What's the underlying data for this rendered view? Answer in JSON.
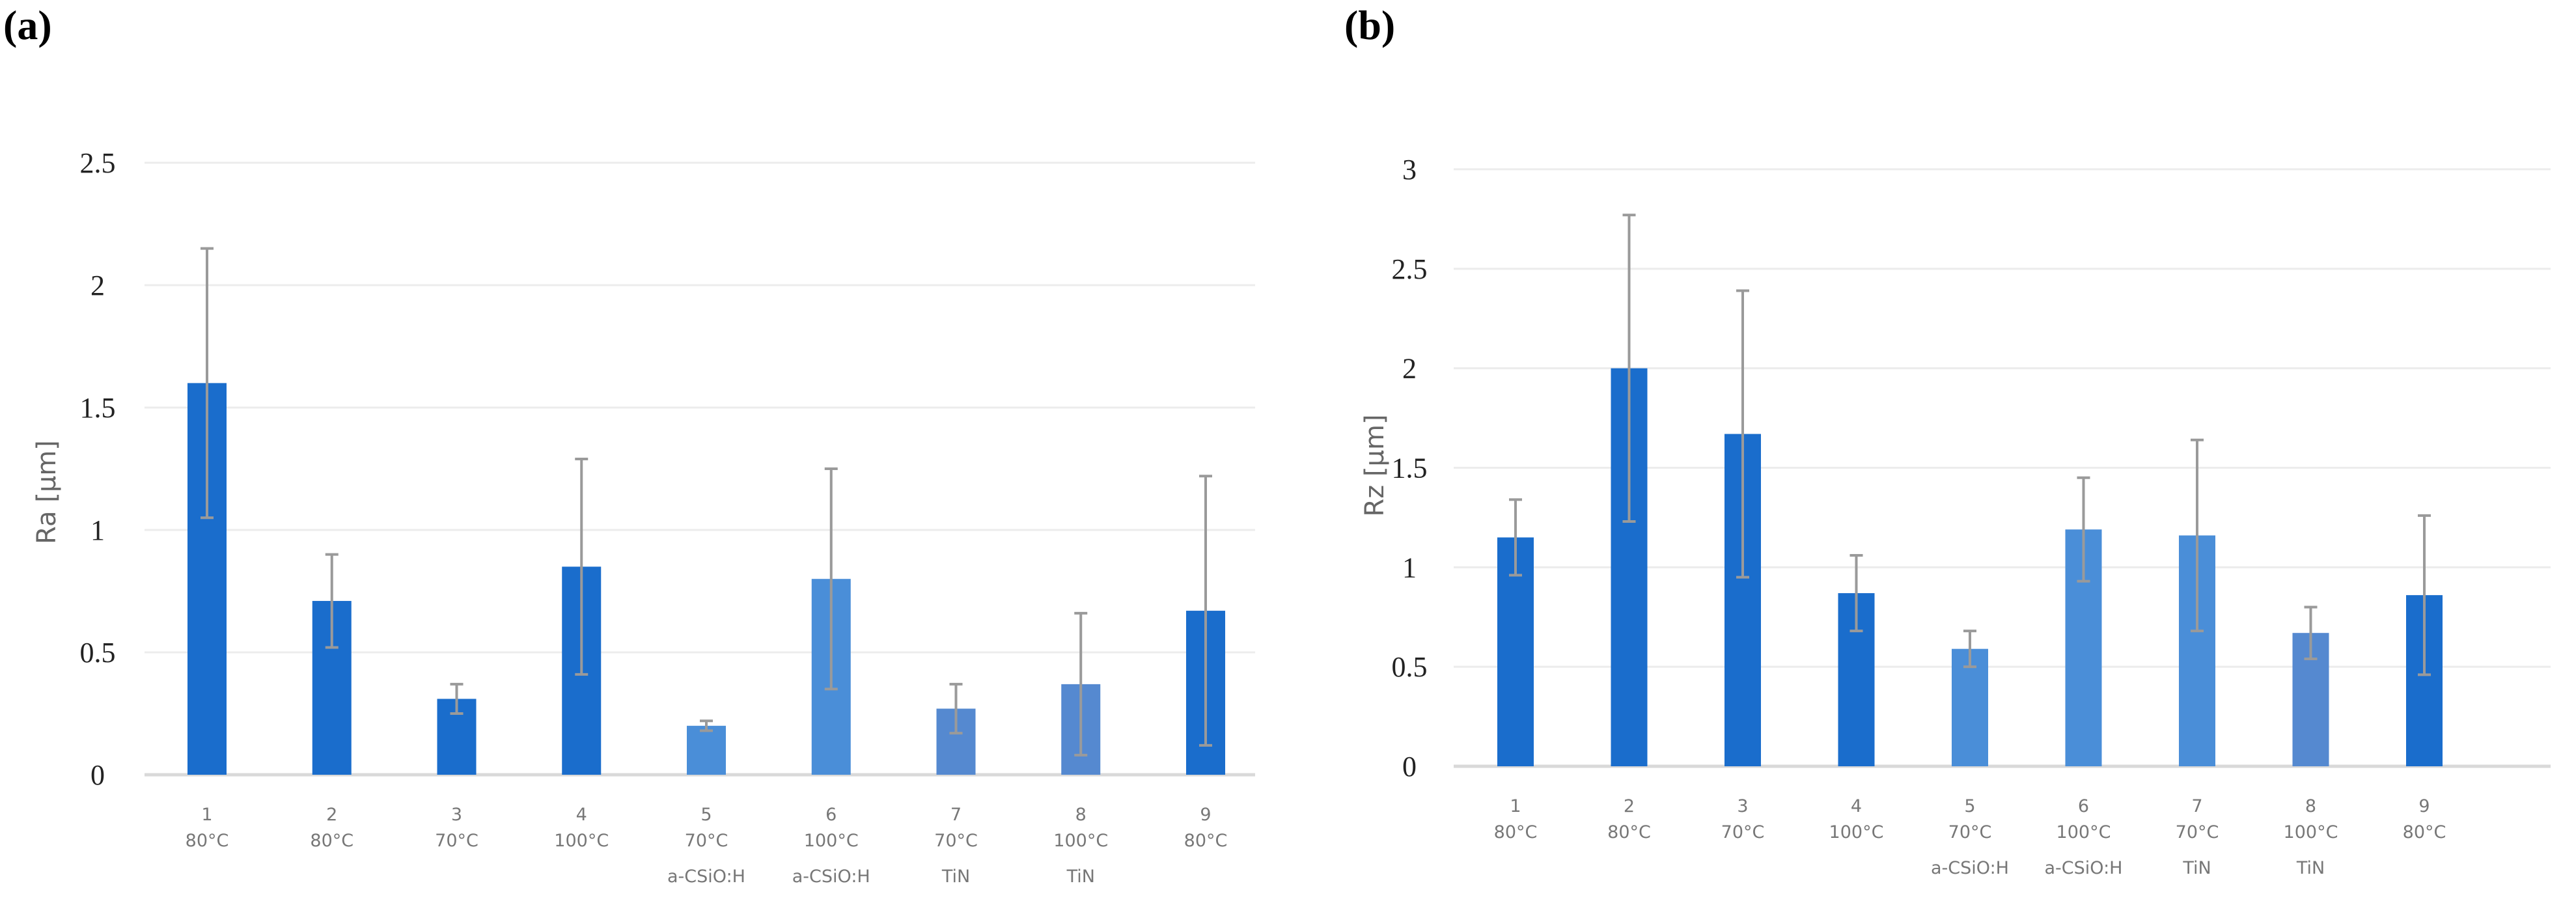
{
  "chart_data": [
    {
      "panel": "(a)",
      "type": "bar",
      "ylabel": "Ra [μm]",
      "xlabel": "",
      "ylim": [
        0,
        2.5
      ],
      "yticks": [
        "0",
        "0.5",
        "1",
        "1.5",
        "2",
        "2.5"
      ],
      "grid": true,
      "categories": [
        [
          "1",
          "80°C",
          ""
        ],
        [
          "2",
          "80°C",
          ""
        ],
        [
          "3",
          "70°C",
          ""
        ],
        [
          "4",
          "100°C",
          ""
        ],
        [
          "5",
          "70°C",
          "a-CSiO:H"
        ],
        [
          "6",
          "100°C",
          "a-CSiO:H"
        ],
        [
          "7",
          "70°C",
          "TiN"
        ],
        [
          "8",
          "100°C",
          "TiN"
        ],
        [
          "9",
          "80°C",
          ""
        ]
      ],
      "values": [
        1.6,
        0.71,
        0.31,
        0.85,
        0.2,
        0.8,
        0.27,
        0.37,
        0.67
      ],
      "errors": [
        0.55,
        0.19,
        0.06,
        0.44,
        0.02,
        0.45,
        0.1,
        0.29,
        0.55
      ],
      "colors": [
        "#1a6dcc",
        "#1a6dcc",
        "#1a6dcc",
        "#1a6dcc",
        "#4a8ed8",
        "#4a8ed8",
        "#5589d0",
        "#5589d0",
        "#1a6dcc"
      ]
    },
    {
      "panel": "(b)",
      "type": "bar",
      "ylabel": "Rz [μm]",
      "xlabel": "",
      "ylim": [
        0,
        3
      ],
      "yticks": [
        "0",
        "0.5",
        "1",
        "1.5",
        "2",
        "2.5",
        "3"
      ],
      "grid": true,
      "categories": [
        [
          "1",
          "80°C",
          ""
        ],
        [
          "2",
          "80°C",
          ""
        ],
        [
          "3",
          "70°C",
          ""
        ],
        [
          "4",
          "100°C",
          ""
        ],
        [
          "5",
          "70°C",
          "a-CSiO:H"
        ],
        [
          "6",
          "100°C",
          "a-CSiO:H"
        ],
        [
          "7",
          "70°C",
          "TiN"
        ],
        [
          "8",
          "100°C",
          "TiN"
        ],
        [
          "9",
          "80°C",
          ""
        ]
      ],
      "values": [
        1.15,
        2.0,
        1.67,
        0.87,
        0.59,
        1.19,
        1.16,
        0.67,
        0.86
      ],
      "errors": [
        0.19,
        0.77,
        0.72,
        0.19,
        0.09,
        0.26,
        0.48,
        0.13,
        0.4
      ],
      "colors": [
        "#1a6dcc",
        "#1a6dcc",
        "#1a6dcc",
        "#1a6dcc",
        "#4a8ed8",
        "#4a8ed8",
        "#4a8ed8",
        "#5589d0",
        "#1a6dcc"
      ]
    }
  ]
}
